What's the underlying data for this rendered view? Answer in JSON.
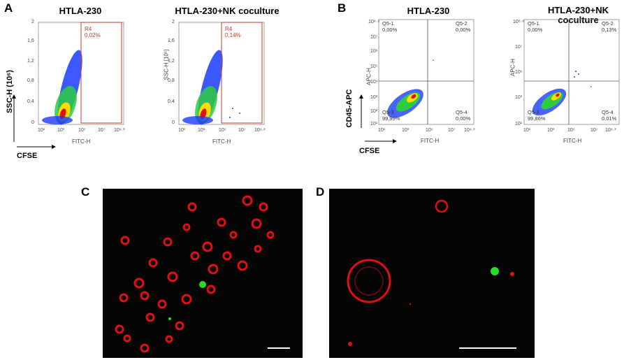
{
  "panels": {
    "A": {
      "letter": "A",
      "ylabel": "SSC-H (10⁶)",
      "xlabel": "CFSE",
      "plots": [
        {
          "title": "HTLA-230",
          "gate_name": "R4",
          "gate_value": "0,02%",
          "y_ticks": [
            "0",
            "0,4",
            "0,8",
            "1,2",
            "1,6",
            "2"
          ],
          "x_ticks": [
            "10¹",
            "10³",
            "10⁵",
            "10⁷",
            "10⁹·³"
          ],
          "x_axis_name": "FITC-H",
          "y_axis_name": ""
        },
        {
          "title": "HTLA-230+NK coculture",
          "gate_name": "R4",
          "gate_value": "0,14%",
          "y_ticks": [
            "0",
            "0,4",
            "0,8",
            "1,2",
            "1,6",
            "2"
          ],
          "x_ticks": [
            "10¹",
            "10³",
            "10⁵",
            "10⁷",
            "10⁹·³"
          ],
          "x_axis_name": "FITC-H",
          "y_axis_name": "SSC-H [10⁶]"
        }
      ]
    },
    "B": {
      "letter": "B",
      "ylabel": "CD45-APC",
      "xlabel": "CFSE",
      "plots": [
        {
          "title": "HTLA-230",
          "quadrants": [
            {
              "name": "Q5-1",
              "value": "0,00%"
            },
            {
              "name": "Q5-2",
              "value": "0,00%"
            },
            {
              "name": "Q5-3",
              "value": "99,99%"
            },
            {
              "name": "Q5-4",
              "value": "0,00%"
            }
          ],
          "y_ticks": [
            "10¹",
            "10²",
            "10³",
            "10⁴",
            "10⁵",
            "10⁶",
            "10⁷",
            "10⁸·⁹"
          ],
          "x_ticks": [
            "10¹",
            "10³",
            "10⁵",
            "10⁷",
            "10⁹·³"
          ],
          "x_axis_name": "FITC-H",
          "y_axis_name": "APC-H"
        },
        {
          "title": "HTLA-230+NK coculture",
          "quadrants": [
            {
              "name": "Q5-1",
              "value": "0,00%"
            },
            {
              "name": "Q5-2",
              "value": "0,13%"
            },
            {
              "name": "Q5-3",
              "value": "99,86%"
            },
            {
              "name": "Q5-4",
              "value": "0,01%"
            }
          ],
          "y_ticks": [
            "10¹",
            "10³",
            "10⁵",
            "10⁷",
            "10⁸·⁹"
          ],
          "x_ticks": [
            "10¹",
            "10³",
            "10⁵",
            "10⁷",
            "10⁹·³"
          ],
          "x_axis_name": "FITC-H",
          "y_axis_name": "APC-H"
        }
      ]
    },
    "C": {
      "letter": "C"
    },
    "D": {
      "letter": "D"
    }
  },
  "colors": {
    "gate": "#c0392b",
    "cell_red": "#e01010",
    "cell_green": "#22dd22",
    "micrograph_bg": "#050505",
    "scale_bar": "#ffffff"
  }
}
